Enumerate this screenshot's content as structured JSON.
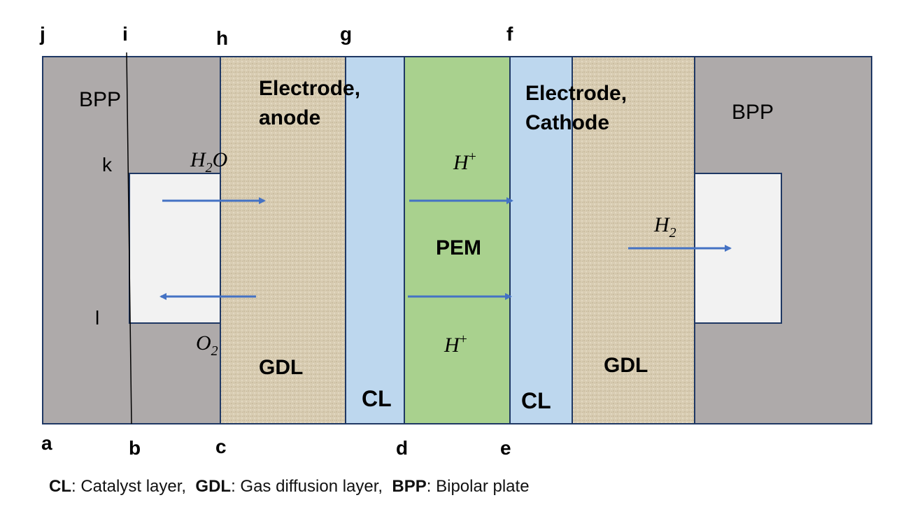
{
  "corner_labels": {
    "j": "j",
    "i": "i",
    "h": "h",
    "g": "g",
    "f": "f",
    "a": "a",
    "b": "b",
    "c": "c",
    "d": "d",
    "e": "e",
    "k": "k",
    "l": "l"
  },
  "layers": {
    "bpp_left": "BPP",
    "bpp_right": "BPP",
    "anode_line1": "Electrode,",
    "anode_line2": "anode",
    "cathode_line1": "Electrode,",
    "cathode_line2": "Cathode",
    "gdl_left": "GDL",
    "gdl_right": "GDL",
    "cl_left": "CL",
    "cl_right": "CL",
    "pem": "PEM"
  },
  "species": {
    "water": "H",
    "water_sub": "2",
    "water_tail": "O",
    "oxygen": "O",
    "oxygen_sub": "2",
    "proton_top": "H",
    "proton_top_sup": "+",
    "proton_bottom": "H",
    "proton_bottom_sup": "+",
    "hydrogen": "H",
    "hydrogen_sub": "2"
  },
  "caption": {
    "cl_abbr": "CL",
    "cl_text": ": Catalyst layer,  ",
    "gdl_abbr": "GDL",
    "gdl_text": ": Gas diffusion layer,  ",
    "bpp_abbr": "BPP",
    "bpp_text": ": Bipolar plate"
  },
  "colors": {
    "bpp": "#aeaaaa",
    "channel": "#f2f2f2",
    "gdl": "#d8ccb2",
    "cl": "#bdd7ee",
    "pem": "#a9d18e",
    "border": "#1f3864",
    "arrow": "#4472c4"
  }
}
